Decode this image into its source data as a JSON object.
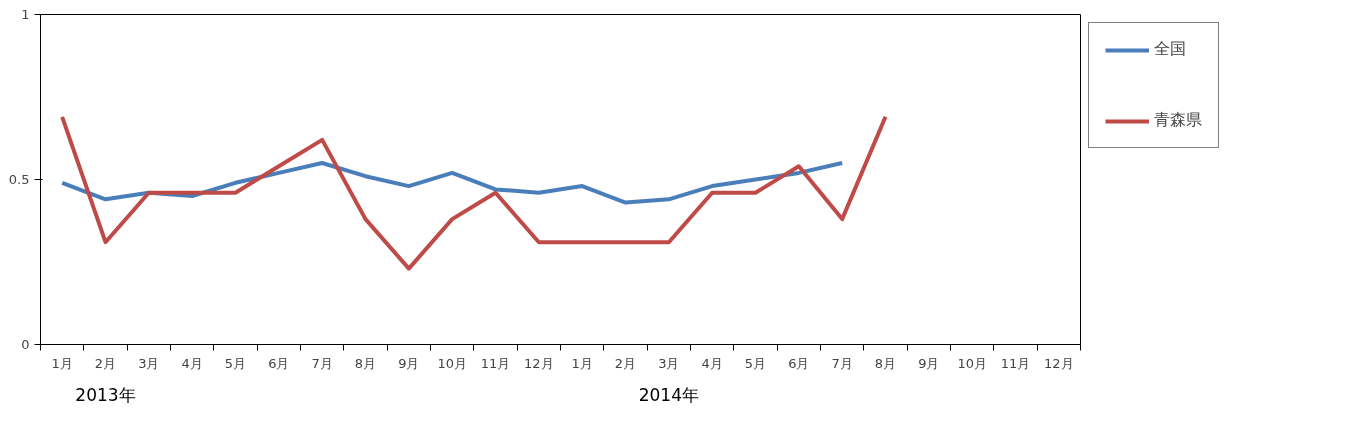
{
  "chart_data": {
    "type": "line",
    "categories": [
      "1月",
      "2月",
      "3月",
      "4月",
      "5月",
      "6月",
      "7月",
      "8月",
      "9月",
      "10月",
      "11月",
      "12月",
      "1月",
      "2月",
      "3月",
      "4月",
      "5月",
      "6月",
      "7月",
      "8月",
      "9月",
      "10月",
      "11月",
      "12月"
    ],
    "series": [
      {
        "name": "全国",
        "color": "#4a7ebb",
        "values": [
          0.49,
          0.44,
          0.46,
          0.45,
          0.49,
          0.52,
          0.55,
          0.51,
          0.48,
          0.52,
          0.47,
          0.46,
          0.48,
          0.43,
          0.44,
          0.48,
          0.5,
          0.52,
          0.55,
          null,
          null,
          null,
          null,
          null
        ]
      },
      {
        "name": "青森県",
        "color": "#be4b48",
        "values": [
          0.69,
          0.31,
          0.46,
          0.46,
          0.46,
          0.54,
          0.62,
          0.38,
          0.23,
          0.38,
          0.46,
          0.31,
          0.31,
          0.31,
          0.31,
          0.46,
          0.46,
          0.54,
          0.38,
          0.69,
          null,
          null,
          null,
          null
        ]
      }
    ],
    "ylim": [
      0,
      1
    ],
    "yticks": [
      0,
      0.5,
      1
    ],
    "annotations": [
      "2013年",
      "2014年"
    ],
    "grid": false,
    "legend": "right",
    "marker": "none",
    "line_style": "solid"
  }
}
